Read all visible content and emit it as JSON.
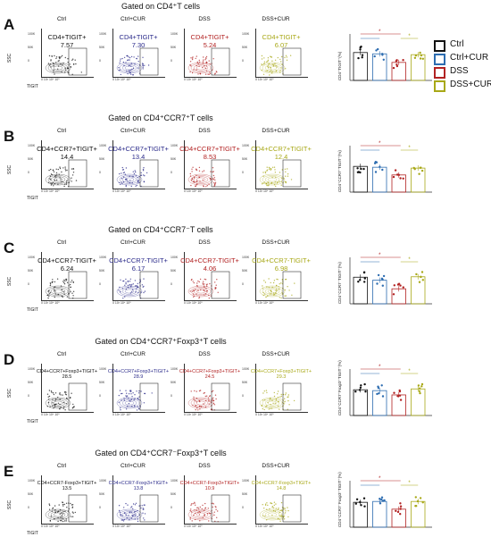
{
  "legend": [
    {
      "label": "Ctrl",
      "color": "#111111"
    },
    {
      "label": "Ctrl+CUR",
      "color": "#2c6cb0"
    },
    {
      "label": "DSS",
      "color": "#b22222"
    },
    {
      "label": "DSS+CUR",
      "color": "#a8a817"
    }
  ],
  "groups": [
    "Ctrl",
    "Ctrl+CUR",
    "DSS",
    "DSS+CUR"
  ],
  "colors": [
    "#111111",
    "#2a2a8a",
    "#b22222",
    "#a8a817"
  ],
  "bar_colors": [
    "#111111",
    "#2c6cb0",
    "#b22222",
    "#a8a817"
  ],
  "axis": {
    "ssc": "SSC",
    "tigit": "TIGIT"
  },
  "sig": "*",
  "rows": [
    {
      "letter": "A",
      "title": "Gated on CD4⁺T cells",
      "gate_label": "CD4+TIGIT+",
      "values": [
        "7.57",
        "7.30",
        "5.24",
        "6.07"
      ],
      "ylabel": "CD4⁺TIGIT⁺(%)"
    },
    {
      "letter": "B",
      "title": "Gated on CD4⁺CCR7⁺T cells",
      "gate_label": "CD4+CCR7+TIGIT+",
      "values": [
        "14.4",
        "13.4",
        "8.53",
        "12.4"
      ],
      "ylabel": "CD4⁺CCR7⁺TIGIT⁺(%)"
    },
    {
      "letter": "C",
      "title": "Gated on CD4⁺CCR7⁻T cells",
      "gate_label": "CD4+CCR7-TIGIT+",
      "values": [
        "6.24",
        "6.17",
        "4.06",
        "6.98"
      ],
      "ylabel": "CD4⁺CCR7⁻TIGIT⁺(%)"
    },
    {
      "letter": "D",
      "title": "Gated on CD4⁺CCR7⁺Foxp3⁺T cells",
      "gate_label": "CD4+CCR7+Foxp3+TIGIT+",
      "values": [
        "28.5",
        "28.9",
        "24.5",
        "29.3"
      ],
      "ylabel": "CD4⁺CCR7⁺Foxp3⁺TIGIT⁺(%)"
    },
    {
      "letter": "E",
      "title": "Gated on CD4⁺CCR7⁻Foxp3⁺T cells",
      "gate_label": "CD4+CCR7-Foxp3+TIGIT+",
      "values": [
        "13.5",
        "13.8",
        "10.9",
        "14.8"
      ],
      "ylabel": "CD4⁺CCR7⁻Foxp3⁺TIGIT⁺(%)"
    }
  ],
  "chart_data": [
    {
      "type": "bar",
      "categories": [
        "Ctrl",
        "Ctrl+CUR",
        "DSS",
        "DSS+CUR"
      ],
      "values": [
        0.65,
        0.62,
        0.42,
        0.6
      ],
      "ylabel": "CD4⁺TIGIT⁺(%)"
    },
    {
      "type": "bar",
      "categories": [
        "Ctrl",
        "Ctrl+CUR",
        "DSS",
        "DSS+CUR"
      ],
      "values": [
        0.6,
        0.58,
        0.4,
        0.56
      ],
      "ylabel": "CD4⁺CCR7⁺TIGIT⁺(%)"
    },
    {
      "type": "bar",
      "categories": [
        "Ctrl",
        "Ctrl+CUR",
        "DSS",
        "DSS+CUR"
      ],
      "values": [
        0.62,
        0.55,
        0.35,
        0.63
      ],
      "ylabel": "CD4⁺CCR7⁻TIGIT⁺(%)"
    },
    {
      "type": "bar",
      "categories": [
        "Ctrl",
        "Ctrl+CUR",
        "DSS",
        "DSS+CUR"
      ],
      "values": [
        0.6,
        0.58,
        0.48,
        0.62
      ],
      "ylabel": "CD4⁺CCR7⁺Foxp3⁺TIGIT⁺(%)"
    },
    {
      "type": "bar",
      "categories": [
        "Ctrl",
        "Ctrl+CUR",
        "DSS",
        "DSS+CUR"
      ],
      "values": [
        0.58,
        0.6,
        0.42,
        0.6
      ],
      "ylabel": "CD4⁺CCR7⁻Foxp3⁺TIGIT⁺(%)"
    }
  ]
}
